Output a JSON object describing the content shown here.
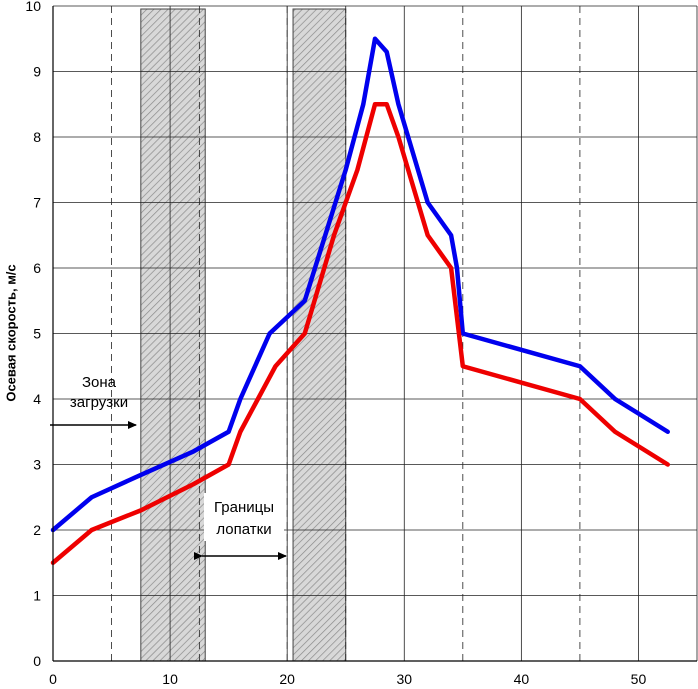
{
  "chart_data": {
    "type": "line",
    "title": "",
    "xlabel": "",
    "ylabel": "Осевая скорость, м/с",
    "xlim": [
      0,
      55
    ],
    "ylim": [
      0,
      10
    ],
    "x_ticks": [
      "0",
      "10",
      "20",
      "30",
      "40",
      "50"
    ],
    "y_ticks": [
      "0",
      "1",
      "2",
      "3",
      "4",
      "5",
      "6",
      "7",
      "8",
      "9",
      "10"
    ],
    "grid": true,
    "series": [
      {
        "color": "#0000ee",
        "x": [
          0,
          3.3,
          7,
          12,
          15,
          16,
          18.5,
          21.5,
          25,
          26.5,
          27.5,
          28.5,
          29.5,
          32,
          34,
          34.5,
          35,
          45,
          48,
          52.5
        ],
        "y": [
          2,
          2.5,
          2.8,
          3.2,
          3.5,
          4,
          5,
          5.5,
          7.5,
          8.5,
          9.5,
          9.3,
          8.5,
          7,
          6.5,
          6,
          5,
          4.5,
          4,
          3.5
        ]
      },
      {
        "color": "#ee0000",
        "x": [
          0,
          3.3,
          7.5,
          12,
          15,
          16,
          17.5,
          19,
          21.5,
          24,
          26,
          27.5,
          28.5,
          29.5,
          32,
          34,
          35,
          45,
          48,
          52.5
        ],
        "y": [
          1.5,
          2,
          2.3,
          2.7,
          3,
          3.5,
          4,
          4.5,
          5,
          6.5,
          7.5,
          8.5,
          8.5,
          8,
          6.5,
          6,
          4.5,
          4,
          3.5,
          3
        ]
      }
    ],
    "shaded_regions": [
      [
        7.5,
        13
      ],
      [
        20.5,
        25
      ]
    ],
    "dashed_verticals": [
      5,
      12.5,
      20,
      25,
      35,
      45
    ]
  },
  "annotations": {
    "loading_zone_line1": "Зона",
    "loading_zone_line2": "загрузки",
    "blade_bounds_line1": "Границы",
    "blade_bounds_line2": "лопатки"
  }
}
